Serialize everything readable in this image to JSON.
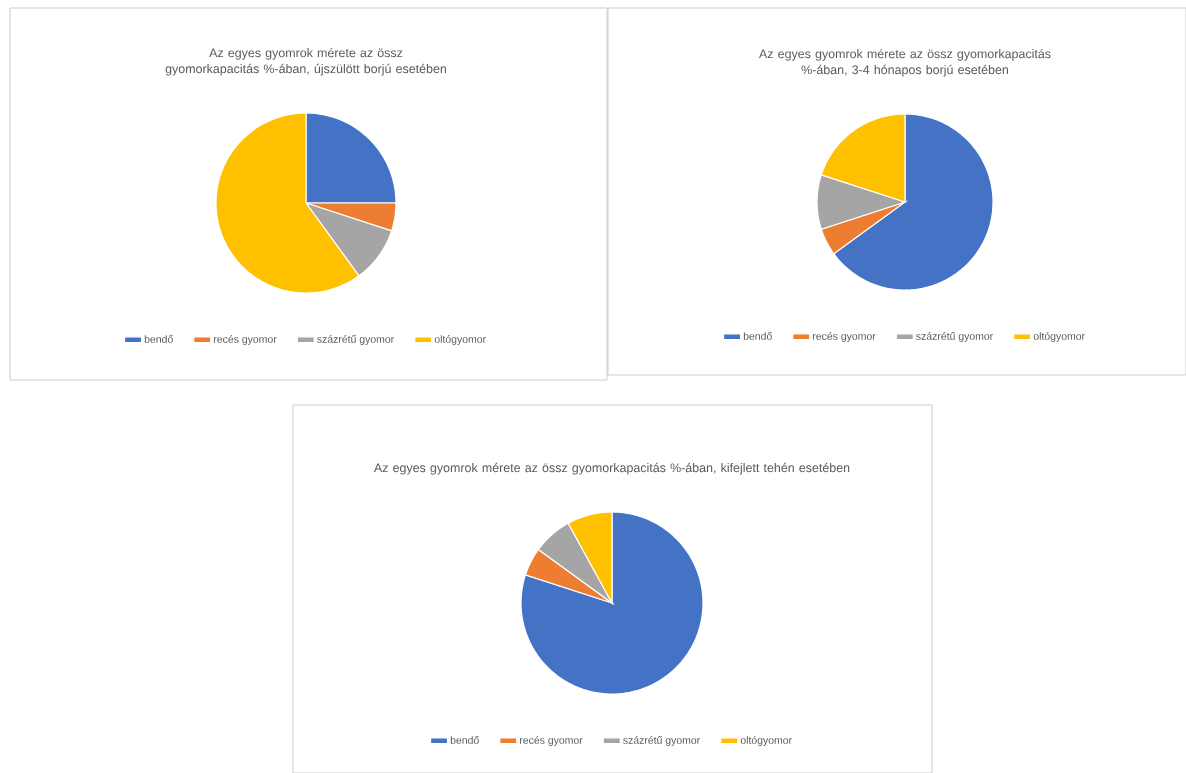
{
  "chart_data": [
    {
      "type": "pie",
      "title": "Az egyes gyomrok mérete az össz gyomorkapacitás %-ában, újszülött borjú esetében",
      "categories": [
        "bendő",
        "recés gyomor",
        "százrétű gyomor",
        "oltógyomor"
      ],
      "values": [
        25,
        5,
        10,
        60
      ],
      "colors": [
        "#4472c4",
        "#ed7d31",
        "#a5a5a5",
        "#ffc000"
      ],
      "legend": "bottom"
    },
    {
      "type": "pie",
      "title": "Az egyes gyomrok mérete az össz gyomorkapacitás %-ában, 3-4 hónapos borjú esetében",
      "categories": [
        "bendő",
        "recés gyomor",
        "százrétű gyomor",
        "oltógyomor"
      ],
      "values": [
        65,
        5,
        10,
        20
      ],
      "colors": [
        "#4472c4",
        "#ed7d31",
        "#a5a5a5",
        "#ffc000"
      ],
      "legend": "bottom"
    },
    {
      "type": "pie",
      "title": "Az egyes gyomrok mérete az össz gyomorkapacitás %-ában, kifejlett tehén esetében",
      "categories": [
        "bendő",
        "recés gyomor",
        "százrétű gyomor",
        "oltógyomor"
      ],
      "values": [
        80,
        5,
        7,
        8
      ],
      "colors": [
        "#4472c4",
        "#ed7d31",
        "#a5a5a5",
        "#ffc000"
      ],
      "legend": "bottom"
    }
  ]
}
